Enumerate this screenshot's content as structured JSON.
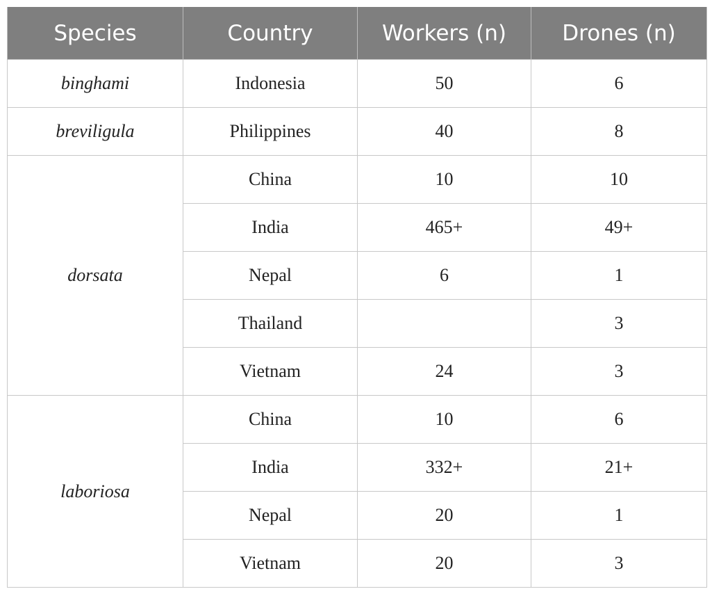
{
  "table": {
    "columns": [
      "Species",
      "Country",
      "Workers (n)",
      "Drones (n)"
    ],
    "groups": [
      {
        "species": "binghami",
        "rows": [
          [
            "Indonesia",
            "50",
            "6"
          ]
        ]
      },
      {
        "species": "breviligula",
        "rows": [
          [
            "Philippines",
            "40",
            "8"
          ]
        ]
      },
      {
        "species": "dorsata",
        "rows": [
          [
            "China",
            "10",
            "10"
          ],
          [
            "India",
            "465+",
            "49+"
          ],
          [
            "Nepal",
            "6",
            "1"
          ],
          [
            "Thailand",
            null,
            "3"
          ],
          [
            "Vietnam",
            "24",
            "3"
          ]
        ]
      },
      {
        "species": "laboriosa",
        "rows": [
          [
            "China",
            "10",
            "6"
          ],
          [
            "India",
            "332+",
            "21+"
          ],
          [
            "Nepal",
            "20",
            "1"
          ],
          [
            "Vietnam",
            "20",
            "3"
          ]
        ]
      }
    ]
  }
}
